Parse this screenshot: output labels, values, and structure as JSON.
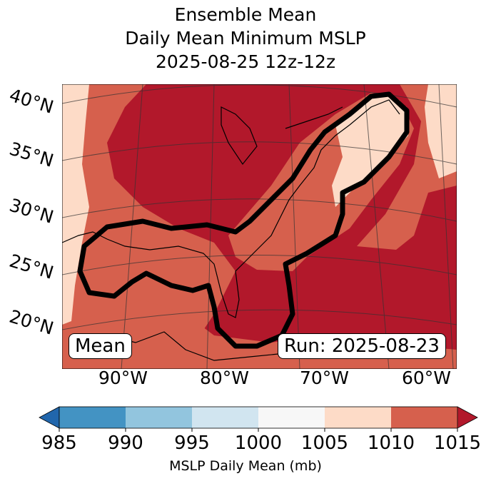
{
  "title": [
    "Ensemble Mean",
    "Daily Mean Minimum MSLP",
    "2025-08-25 12z-12z"
  ],
  "lat_labels": [
    "40°N",
    "35°N",
    "30°N",
    "25°N",
    "20°N"
  ],
  "lon_labels": [
    "90°W",
    "80°W",
    "70°W",
    "60°W"
  ],
  "annotations": {
    "left": "Mean",
    "right": "Run: 2025-08-23"
  },
  "colorbar": {
    "ticks": [
      "985",
      "990",
      "995",
      "1000",
      "1005",
      "1010",
      "1015"
    ],
    "label": "MSLP Daily Mean (mb)",
    "colors": [
      "#4393c3",
      "#92c5de",
      "#d1e5f0",
      "#f7f7f7",
      "#fddbc7",
      "#d6604d"
    ],
    "under_color": "#2166ac",
    "over_color": "#b2182b"
  },
  "map_colors": {
    "low": "#fddbc7",
    "mid": "#d6604d",
    "high": "#b2182b"
  }
}
